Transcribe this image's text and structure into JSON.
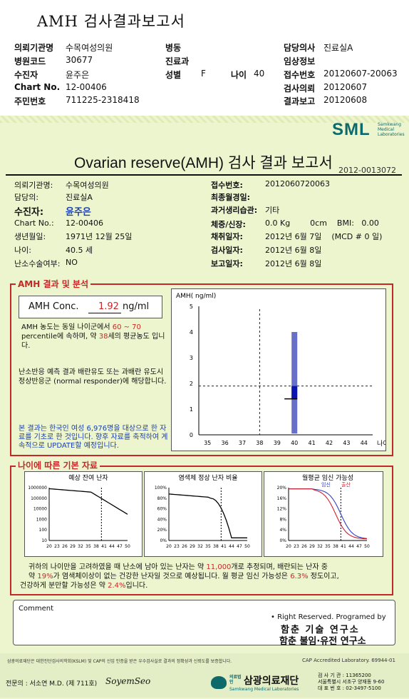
{
  "header": {
    "title": "AMH 검사결과보고서",
    "rows": [
      [
        {
          "k": "의뢰기관명",
          "v": "수목여성의원"
        },
        {
          "k": "병동",
          "v": ""
        },
        {
          "k": "담당의사",
          "v": "진료실A"
        }
      ],
      [
        {
          "k": "병원코드",
          "v": "30677"
        },
        {
          "k": "진료과",
          "v": ""
        },
        {
          "k": "임상정보",
          "v": ""
        }
      ],
      [
        {
          "k": "수진자",
          "v": "윤주은"
        },
        {
          "k": "성별",
          "v": "F"
        },
        {
          "k": "나이",
          "v": "40"
        },
        {
          "k": "접수번호",
          "v": "20120607-20063"
        }
      ],
      [
        {
          "k": "Chart No.",
          "v": "12-00406"
        },
        {
          "k": "검사의뢰",
          "v": "20120607"
        }
      ],
      [
        {
          "k": "주민번호",
          "v": "711225-2318418"
        },
        {
          "k": "결과보고",
          "v": "20120608"
        }
      ]
    ]
  },
  "logo": {
    "text": "SML",
    "sub1": "Samkwang",
    "sub2": "Medical",
    "sub3": "Laboratories"
  },
  "report": {
    "title": "Ovarian reserve(AMH) 검사 결과 보고서",
    "doc_no": "2012-0013072",
    "left": [
      {
        "k": "의뢰기관명:",
        "v": "수목여성의원"
      },
      {
        "k": "담당의:",
        "v": "진료실A"
      },
      {
        "k": "수진자:",
        "v": "윤주은"
      },
      {
        "k": "Chart No.:",
        "v": "12-00406"
      },
      {
        "k": "생년월일:",
        "v": "1971년 12월 25일"
      },
      {
        "k": "나이:",
        "v": "40.5 세"
      },
      {
        "k": "난소수술여부:",
        "v": "NO"
      }
    ],
    "right": [
      {
        "k": "접수번호:",
        "v": "2012060720063"
      },
      {
        "k": "최종월경일:",
        "v": ""
      },
      {
        "k": "과거생리습관:",
        "v": "기타"
      },
      {
        "k": "체중/신장:",
        "v": "0.0 Kg        0cm    BMI:   0.00"
      },
      {
        "k": "채취일자:",
        "v": "2012년 6월 7일    (MCD # 0 일)"
      },
      {
        "k": "검사일자:",
        "v": "2012년 6월 8일"
      },
      {
        "k": "보고일자:",
        "v": "2012년 6월 8일"
      }
    ]
  },
  "amh": {
    "section": "AMH 결과 및 분석",
    "conc_label": "AMH Conc.",
    "conc_value": "1.92",
    "conc_unit": "ng/ml",
    "p1a": "AMH 농도는 동일 나이군에서",
    "p1b": "60 ~ 70",
    "p1c": "percentile에 속하며, 약",
    "p1d": "38",
    "p1e": "세의 평균농도",
    "p1f": "입니다.",
    "p2": "난소반응 예측 결과 배란유도 또는 과배란 유도시 정상반응군 (normal responder)에 해당합니다.",
    "p3": "본 결과는 한국인 여성 6,976명을 대상으로 한 자료를 기초로 한 것입니다. 향후 자료를 축적하여 계속적으로 UPDATE할 예정입니다."
  },
  "chart_data": [
    {
      "type": "scatter",
      "title": "",
      "ylabel": "AMH( ng/ml)",
      "xlabel": "나이",
      "x_ticks": [
        35,
        36,
        37,
        38,
        39,
        40,
        41,
        42,
        43,
        44
      ],
      "y_ticks": [
        0,
        1,
        2,
        3,
        4,
        5
      ],
      "xlim": [
        34.5,
        44.5
      ],
      "ylim": [
        0,
        5
      ],
      "reference_age": 38,
      "reference_level": 1.9,
      "range_bar": {
        "x": 40,
        "low": 0.05,
        "high": 4.0
      },
      "iqr": {
        "x": 40,
        "low": 1.4,
        "high": 1.9
      },
      "point": {
        "x": 40,
        "y": 1.92
      }
    },
    {
      "type": "line",
      "title": "예상 잔여 난자",
      "y_ticks": [
        "1000000",
        "100000",
        "10000",
        "1000",
        "100",
        "10"
      ],
      "x_ticks": [
        20,
        23,
        26,
        29,
        32,
        35,
        38,
        41,
        44,
        47,
        50
      ],
      "reference_age": 40
    },
    {
      "type": "line",
      "title": "염색체 정상 난자 비율",
      "y_ticks": [
        "100%",
        "80%",
        "60%",
        "40%",
        "20%",
        "0%"
      ],
      "x_ticks": [
        20,
        23,
        26,
        29,
        32,
        35,
        38,
        41,
        44,
        47,
        50
      ],
      "reference_age": 40
    },
    {
      "type": "line",
      "title": "월평균 임신 가능성",
      "legend": [
        "임신",
        "출산"
      ],
      "y_ticks": [
        "20%",
        "16%",
        "12%",
        "8%",
        "4%",
        "0%"
      ],
      "x_ticks": [
        20,
        23,
        26,
        29,
        32,
        35,
        38,
        41,
        44,
        47,
        50
      ],
      "reference_age": 40
    }
  ],
  "basic": {
    "section": "나이에 따른 기본 자료",
    "l1a": "귀하의 나이만을 고려하였을 때 난소에 남아 있는 난자는 약",
    "l1b": "11,000",
    "l1c": "개로 추정되며, 배란되는 난자 중",
    "l2a": "약",
    "l2b": "19%",
    "l2c": "가 염색체이상이 없는 건강한 난자일 것으로 예상됩니다. 월 평균 임신 가능성은",
    "l2d": "6.3%",
    "l2e": "정도이고,",
    "l3a": "건강하게 분만할 가능성은 약",
    "l3b": "2.4%",
    "l3c": "입니다."
  },
  "comment": {
    "label": "Comment",
    "rights": "• Right Reserved. Programed by",
    "org1": "함춘 기술 연구소",
    "org2": "함춘 불임·유전 연구소"
  },
  "footer": {
    "notice": "삼광의료재단은 대한진단검사의학회(KSLM) 및 CAP의 신임 인증을 받은 우수검사실로 결과의 정확성과 신뢰도를 보증합니다.",
    "cap": "CAP Accredited Laboratory.  69944-01",
    "doctor": "전문의 : 서소연 M.D. (제 711호)",
    "sign": "SoyemSeo",
    "brand": "삼광의료재단",
    "brand_sub": "Samkwang Medical Laboratories",
    "brand_pre": "의료법인",
    "addr1": "검 사 기 관 : 11365200",
    "addr2": "서울특별시 서초구 양재동 9-60",
    "addr3": "대 표 번 호 : 02-3497-5100"
  }
}
